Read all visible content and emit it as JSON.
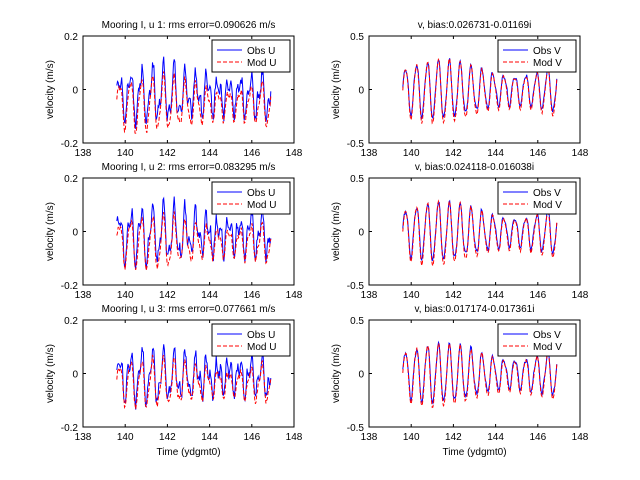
{
  "figure": {
    "background": "#ffffff"
  },
  "chart_data": [
    {
      "type": "line",
      "title": "Mooring I, u 1: rms error=0.090626 m/s",
      "xlabel": "",
      "ylabel": "velocity (m/s)",
      "xlim": [
        138,
        148
      ],
      "ylim": [
        -0.2,
        0.2
      ],
      "xticks": [
        "138",
        "140",
        "142",
        "144",
        "146",
        "148"
      ],
      "yticks": [
        "-0.2",
        "0",
        "0.2"
      ],
      "legend_position": "top-right",
      "series": [
        {
          "name": "Obs U",
          "color": "#0000ff",
          "style": "solid",
          "amp": 0.07,
          "mean": -0.02,
          "env": 0.04
        },
        {
          "name": "Mod U",
          "color": "#ff0000",
          "style": "dashed",
          "amp": 0.075,
          "mean": -0.055,
          "env": 0.02
        }
      ],
      "x_range": [
        139.6,
        146.9
      ]
    },
    {
      "type": "line",
      "title": "v, bias:0.026731-0.01169i",
      "xlabel": "",
      "ylabel": "velocity (m/s)",
      "xlim": [
        138,
        148
      ],
      "ylim": [
        -0.5,
        0.5
      ],
      "xticks": [
        "138",
        "140",
        "142",
        "144",
        "146",
        "148"
      ],
      "yticks": [
        "-0.5",
        "0",
        "0.5"
      ],
      "legend_position": "top-right",
      "series": [
        {
          "name": "Obs V",
          "color": "#0000ff",
          "style": "solid",
          "amp": 0.2,
          "mean": 0.0,
          "env": 0.03
        },
        {
          "name": "Mod V",
          "color": "#ff0000",
          "style": "dashed",
          "amp": 0.22,
          "mean": -0.02,
          "env": 0.02
        }
      ],
      "x_range": [
        139.6,
        146.9
      ]
    },
    {
      "type": "line",
      "title": "Mooring I, u 2: rms error=0.083295 m/s",
      "xlabel": "",
      "ylabel": "velocity (m/s)",
      "xlim": [
        138,
        148
      ],
      "ylim": [
        -0.2,
        0.2
      ],
      "xticks": [
        "138",
        "140",
        "142",
        "144",
        "146",
        "148"
      ],
      "yticks": [
        "-0.2",
        "0",
        "0.2"
      ],
      "legend_position": "top-right",
      "series": [
        {
          "name": "Obs U",
          "color": "#0000ff",
          "style": "solid",
          "amp": 0.07,
          "mean": -0.01,
          "env": 0.04
        },
        {
          "name": "Mod U",
          "color": "#ff0000",
          "style": "dashed",
          "amp": 0.07,
          "mean": -0.04,
          "env": 0.02
        }
      ],
      "x_range": [
        139.6,
        146.9
      ]
    },
    {
      "type": "line",
      "title": "v, bias:0.024118-0.016038i",
      "xlabel": "",
      "ylabel": "velocity (m/s)",
      "xlim": [
        138,
        148
      ],
      "ylim": [
        -0.5,
        0.5
      ],
      "xticks": [
        "138",
        "140",
        "142",
        "144",
        "146",
        "148"
      ],
      "yticks": [
        "-0.5",
        "0",
        "0.5"
      ],
      "legend_position": "top-right",
      "series": [
        {
          "name": "Obs V",
          "color": "#0000ff",
          "style": "solid",
          "amp": 0.2,
          "mean": 0.0,
          "env": 0.03
        },
        {
          "name": "Mod V",
          "color": "#ff0000",
          "style": "dashed",
          "amp": 0.22,
          "mean": -0.02,
          "env": 0.02
        }
      ],
      "x_range": [
        139.6,
        146.9
      ]
    },
    {
      "type": "line",
      "title": "Mooring I, u 3: rms error=0.077661 m/s",
      "xlabel": "Time (ydgmt0)",
      "ylabel": "velocity (m/s)",
      "xlim": [
        138,
        148
      ],
      "ylim": [
        -0.2,
        0.2
      ],
      "xticks": [
        "138",
        "140",
        "142",
        "144",
        "146",
        "148"
      ],
      "yticks": [
        "-0.2",
        "0",
        "0.2"
      ],
      "legend_position": "top-right",
      "series": [
        {
          "name": "Obs U",
          "color": "#0000ff",
          "style": "solid",
          "amp": 0.065,
          "mean": -0.01,
          "env": 0.04
        },
        {
          "name": "Mod U",
          "color": "#ff0000",
          "style": "dashed",
          "amp": 0.065,
          "mean": -0.035,
          "env": 0.02
        }
      ],
      "x_range": [
        139.6,
        146.9
      ]
    },
    {
      "type": "line",
      "title": "v, bias:0.017174-0.017361i",
      "xlabel": "Time (ydgmt0)",
      "ylabel": "velocity (m/s)",
      "xlim": [
        138,
        148
      ],
      "ylim": [
        -0.5,
        0.5
      ],
      "xticks": [
        "138",
        "140",
        "142",
        "144",
        "146",
        "148"
      ],
      "yticks": [
        "-0.5",
        "0",
        "0.5"
      ],
      "legend_position": "top-right",
      "series": [
        {
          "name": "Obs V",
          "color": "#0000ff",
          "style": "solid",
          "amp": 0.2,
          "mean": 0.0,
          "env": 0.03
        },
        {
          "name": "Mod V",
          "color": "#ff0000",
          "style": "dashed",
          "amp": 0.22,
          "mean": -0.02,
          "env": 0.02
        }
      ],
      "x_range": [
        139.6,
        146.9
      ]
    }
  ]
}
